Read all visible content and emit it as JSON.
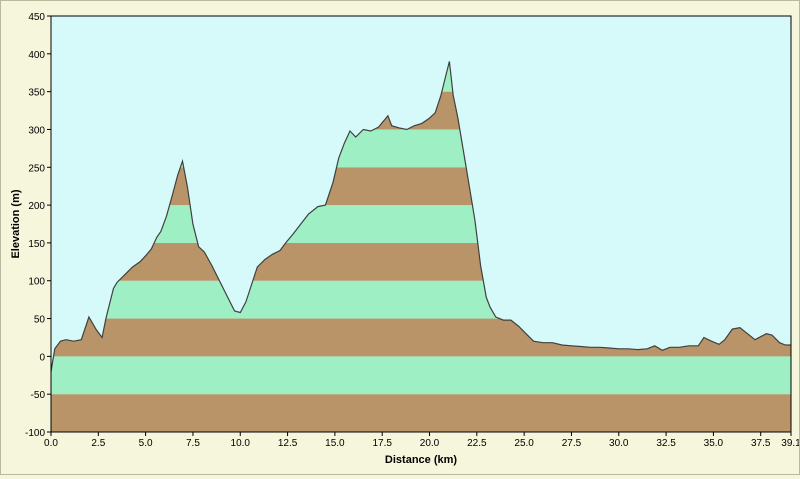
{
  "chart_data": {
    "type": "area",
    "title": "",
    "xlabel": "Distance  (km)",
    "ylabel": "Elevation (m)",
    "xlim": [
      0,
      39.1
    ],
    "ylim": [
      -100,
      450
    ],
    "x_ticks": [
      "0.0",
      "2.5",
      "5.0",
      "7.5",
      "10.0",
      "12.5",
      "15.0",
      "17.5",
      "20.0",
      "22.5",
      "25.0",
      "27.5",
      "30.0",
      "32.5",
      "35.0",
      "37.5",
      "39.1"
    ],
    "x_tick_values": [
      0,
      2.5,
      5,
      7.5,
      10,
      12.5,
      15,
      17.5,
      20,
      22.5,
      25,
      27.5,
      30,
      32.5,
      35,
      37.5,
      39.1
    ],
    "y_ticks": [
      -100,
      -50,
      0,
      50,
      100,
      150,
      200,
      250,
      300,
      350,
      400,
      450
    ],
    "band_size": 50,
    "colors": {
      "plot_background": "#d6fafa",
      "band_green": "#9ef0c4",
      "band_brown": "#b89468",
      "profile_line": "#404040",
      "axis": "#000000"
    },
    "series": [
      {
        "x": [
          0,
          0.2,
          0.5,
          0.8,
          1.2,
          1.6,
          2.0,
          2.4,
          2.7,
          2.9,
          3.1,
          3.3,
          3.5,
          3.9,
          4.3,
          4.7,
          5.0,
          5.3,
          5.6,
          5.8,
          6.1,
          6.4,
          6.7,
          6.95,
          7.2,
          7.5,
          7.8,
          8.1,
          8.5,
          8.9,
          9.3,
          9.7,
          10.0,
          10.3,
          10.6,
          10.9,
          11.3,
          11.7,
          12.1,
          12.4,
          12.8,
          13.2,
          13.6,
          14.1,
          14.5,
          14.9,
          15.2,
          15.5,
          15.8,
          16.1,
          16.5,
          16.9,
          17.3,
          17.6,
          17.8,
          18.0,
          18.4,
          18.8,
          19.2,
          19.6,
          20.0,
          20.3,
          20.6,
          20.85,
          21.05,
          21.25,
          21.5,
          21.8,
          22.1,
          22.4,
          22.7,
          23.0,
          23.2,
          23.5,
          23.9,
          24.3,
          24.7,
          25.1,
          25.5,
          26.0,
          26.5,
          27.0,
          27.5,
          28.0,
          28.5,
          29.0,
          29.5,
          30.0,
          30.5,
          31.0,
          31.5,
          31.9,
          32.3,
          32.7,
          33.2,
          33.7,
          34.2,
          34.5,
          34.9,
          35.3,
          35.6,
          36.0,
          36.4,
          36.8,
          37.2,
          37.5,
          37.8,
          38.1,
          38.5,
          38.8,
          39.1
        ],
        "y": [
          -20,
          10,
          20,
          22,
          20,
          22,
          52,
          35,
          25,
          50,
          70,
          90,
          98,
          108,
          118,
          125,
          133,
          142,
          158,
          165,
          185,
          212,
          240,
          258,
          225,
          175,
          145,
          138,
          120,
          100,
          80,
          60,
          58,
          72,
          95,
          118,
          128,
          135,
          140,
          150,
          162,
          175,
          188,
          198,
          200,
          230,
          262,
          282,
          298,
          290,
          300,
          298,
          303,
          312,
          318,
          305,
          302,
          300,
          305,
          308,
          315,
          322,
          345,
          370,
          390,
          345,
          315,
          270,
          225,
          180,
          120,
          78,
          65,
          52,
          48,
          48,
          40,
          30,
          20,
          18,
          18,
          15,
          14,
          13,
          12,
          12,
          11,
          10,
          10,
          9,
          10,
          14,
          8,
          12,
          12,
          14,
          14,
          25,
          20,
          16,
          22,
          36,
          38,
          30,
          22,
          26,
          30,
          28,
          18,
          15,
          15
        ]
      }
    ]
  }
}
